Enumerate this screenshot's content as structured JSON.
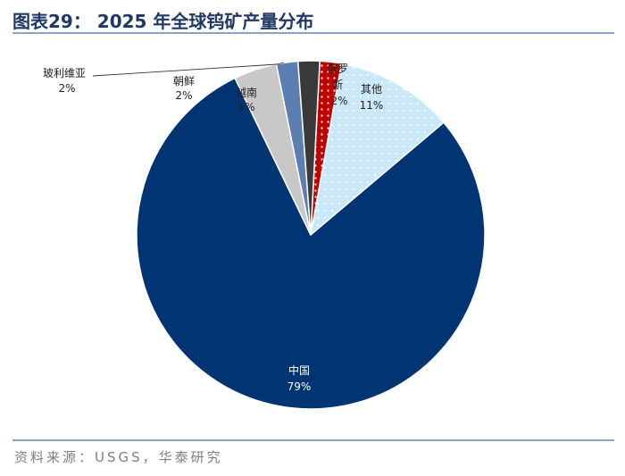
{
  "figure": {
    "title": "图表29： 2025 年全球钨矿产量分布",
    "source": "资料来源：USGS，华泰研究"
  },
  "colors": {
    "title": "#1f3864",
    "rule": "#8aa4c4",
    "source": "#7f7f7f"
  },
  "chart_data": {
    "type": "pie",
    "title": "",
    "unit": "%",
    "legend": "none (labels on slices)",
    "slices": [
      {
        "name": "俄罗斯",
        "value": 2,
        "label": "2%",
        "color": "#c00000",
        "pattern": "white-dots"
      },
      {
        "name": "其他",
        "value": 11,
        "label": "11%",
        "color": "#c9e9fb",
        "pattern": "white-dots"
      },
      {
        "name": "中国",
        "value": 79,
        "label": "79%",
        "color": "#003473",
        "pattern": "solid"
      },
      {
        "name": "越南",
        "value": 4,
        "label": "4%",
        "color": "#c8c8c8",
        "pattern": "solid"
      },
      {
        "name": "朝鲜",
        "value": 2,
        "label": "2%",
        "color": "#5b7fb0",
        "pattern": "solid"
      },
      {
        "name": "玻利维亚",
        "value": 2,
        "label": "2%",
        "color": "#3a3a3a",
        "pattern": "solid"
      }
    ]
  }
}
